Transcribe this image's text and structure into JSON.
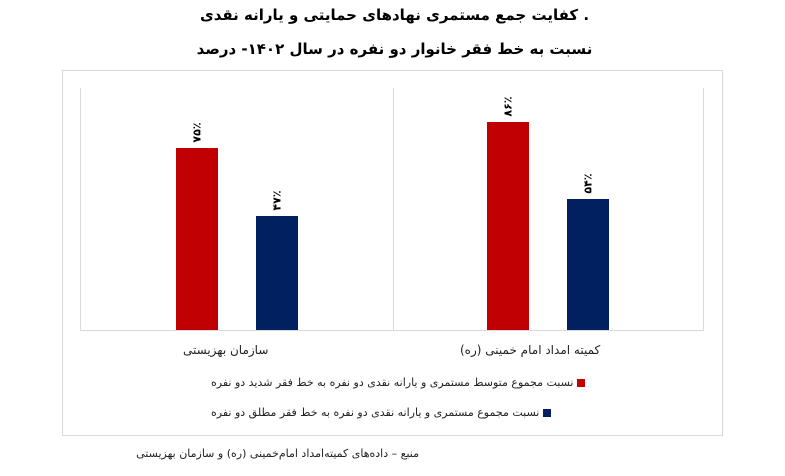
{
  "title": {
    "line1": ". کفایت جمع مستمری نهادهای حمایتی و یارانه نقدی",
    "line2": "نسبت به خط فقر خانوار دو نفره در سال ۱۴۰۲- درصد"
  },
  "colors": {
    "series1": "#C00000",
    "series2": "#002060",
    "gridline": "#D9D9D9"
  },
  "categories": [
    {
      "label": "کمیته امداد امام خمینی (ره)"
    },
    {
      "label": "سازمان بهزیستی"
    }
  ],
  "bars": [
    {
      "category": "کمیته امداد امام خمینی (ره)",
      "series": "severe",
      "value": 86,
      "label": "۸۶٪"
    },
    {
      "category": "کمیته امداد امام خمینی (ره)",
      "series": "absolute",
      "value": 54,
      "label": "۵۴٪"
    },
    {
      "category": "سازمان بهزیستی",
      "series": "severe",
      "value": 75,
      "label": "۷۵٪"
    },
    {
      "category": "سازمان بهزیستی",
      "series": "absolute",
      "value": 47,
      "label": "۴۷٪"
    }
  ],
  "legend": [
    {
      "label": "نسبت مجموع متوسط مستمری و یارانه نقدی دو نفره به خط فقر شدید دو نفره",
      "color": "#C00000"
    },
    {
      "label": "نسبت مجموع مستمری و یارانه نقدی دو نفره به خط فقر مطلق دو نفره",
      "color": "#002060"
    }
  ],
  "source": "منبع – داده‌های کمیته‌امداد امام‌خمینی (ره) و سازمان بهزیستی",
  "chart_data": {
    "type": "bar",
    "title": ". کفایت جمع مستمری نهادهای حمایتی و یارانه نقدی نسبت به خط فقر خانوار دو نفره در سال ۱۴۰۲- درصد",
    "categories": [
      "کمیته امداد امام خمینی (ره)",
      "سازمان بهزیستی"
    ],
    "series": [
      {
        "name": "نسبت مجموع متوسط مستمری و یارانه نقدی دو نفره به خط فقر شدید دو نفره",
        "values": [
          86,
          75
        ],
        "color": "#C00000"
      },
      {
        "name": "نسبت مجموع مستمری و یارانه نقدی دو نفره به خط فقر مطلق دو نفره",
        "values": [
          54,
          47
        ],
        "color": "#002060"
      }
    ],
    "data_labels": [
      [
        "۸۶٪",
        "۷۵٪"
      ],
      [
        "۵۴٪",
        "۴۷٪"
      ]
    ],
    "xlabel": "",
    "ylabel": "",
    "unit": "percent",
    "ylim": [
      0,
      100
    ],
    "grid": false,
    "legend_position": "bottom",
    "source": "منبع – داده‌های کمیته‌امداد امام‌خمینی (ره) و سازمان بهزیستی"
  }
}
